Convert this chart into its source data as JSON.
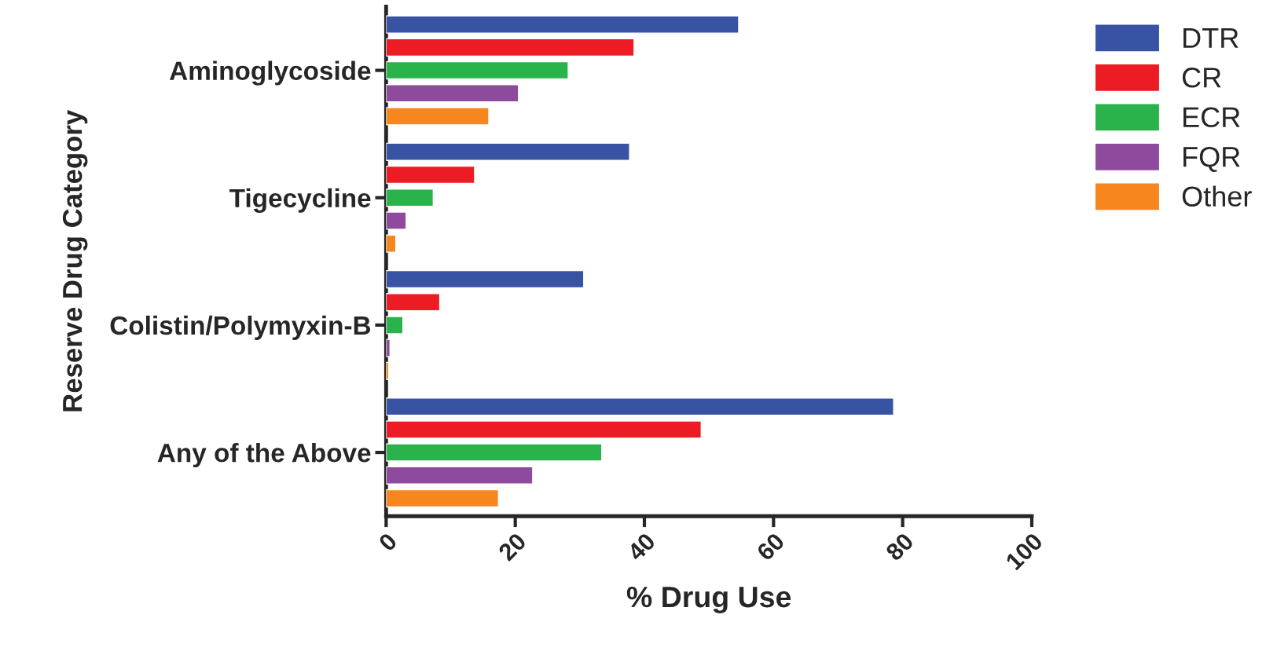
{
  "chart_data": {
    "type": "bar",
    "orientation": "horizontal",
    "xlabel": "% Drug Use",
    "ylabel": "Reserve Drug Category",
    "categories": [
      "Aminoglycoside",
      "Tigecycline",
      "Colistin/Polymyxin-B",
      "Any of the Above"
    ],
    "series": [
      {
        "name": "DTR",
        "color": "#3953a4",
        "values": [
          54.6,
          37.7,
          30.6,
          78.6
        ]
      },
      {
        "name": "CR",
        "color": "#ed1c24",
        "values": [
          38.4,
          13.7,
          8.3,
          48.8
        ]
      },
      {
        "name": "ECR",
        "color": "#2bb34b",
        "values": [
          28.2,
          7.3,
          2.6,
          33.4
        ]
      },
      {
        "name": "FQR",
        "color": "#8e4b9d",
        "values": [
          20.5,
          3.1,
          0.6,
          22.7
        ]
      },
      {
        "name": "Other",
        "color": "#f7861f",
        "values": [
          15.9,
          1.5,
          0.4,
          17.4
        ]
      }
    ],
    "xlim": [
      0,
      100
    ],
    "xticks": [
      0,
      20,
      40,
      60,
      80,
      100
    ],
    "grid": false,
    "legend": "right"
  }
}
